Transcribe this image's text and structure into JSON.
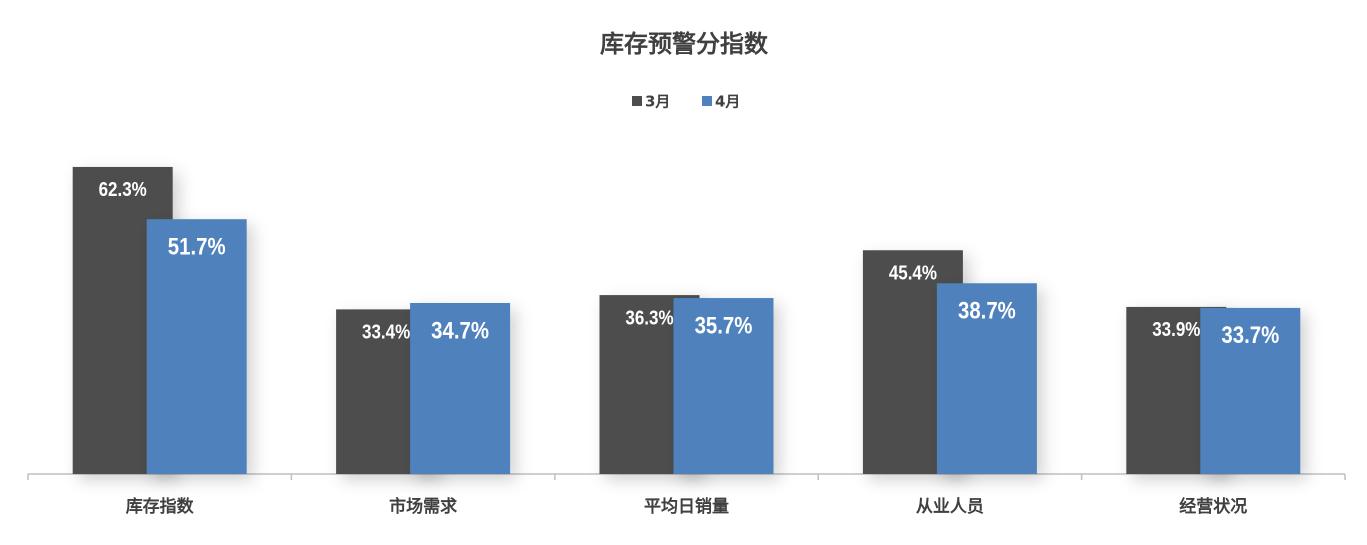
{
  "chart_data": {
    "type": "bar",
    "title": "库存预警分指数",
    "categories": [
      "库存指数",
      "市场需求",
      "平均日销量",
      "从业人员",
      "经营状况"
    ],
    "series": [
      {
        "name": "3月",
        "color": "#4d4d4d",
        "values": [
          62.3,
          33.4,
          36.3,
          45.4,
          33.9
        ],
        "value_labels": [
          "62.3%",
          "33.4%",
          "36.3%",
          "45.4%",
          "33.9%"
        ]
      },
      {
        "name": "4月",
        "color": "#4f81bd",
        "values": [
          51.7,
          34.7,
          35.7,
          38.7,
          33.7
        ],
        "value_labels": [
          "51.7%",
          "34.7%",
          "35.7%",
          "38.7%",
          "33.7%"
        ]
      }
    ],
    "ylim": [
      0,
      70
    ],
    "legend": "top"
  }
}
